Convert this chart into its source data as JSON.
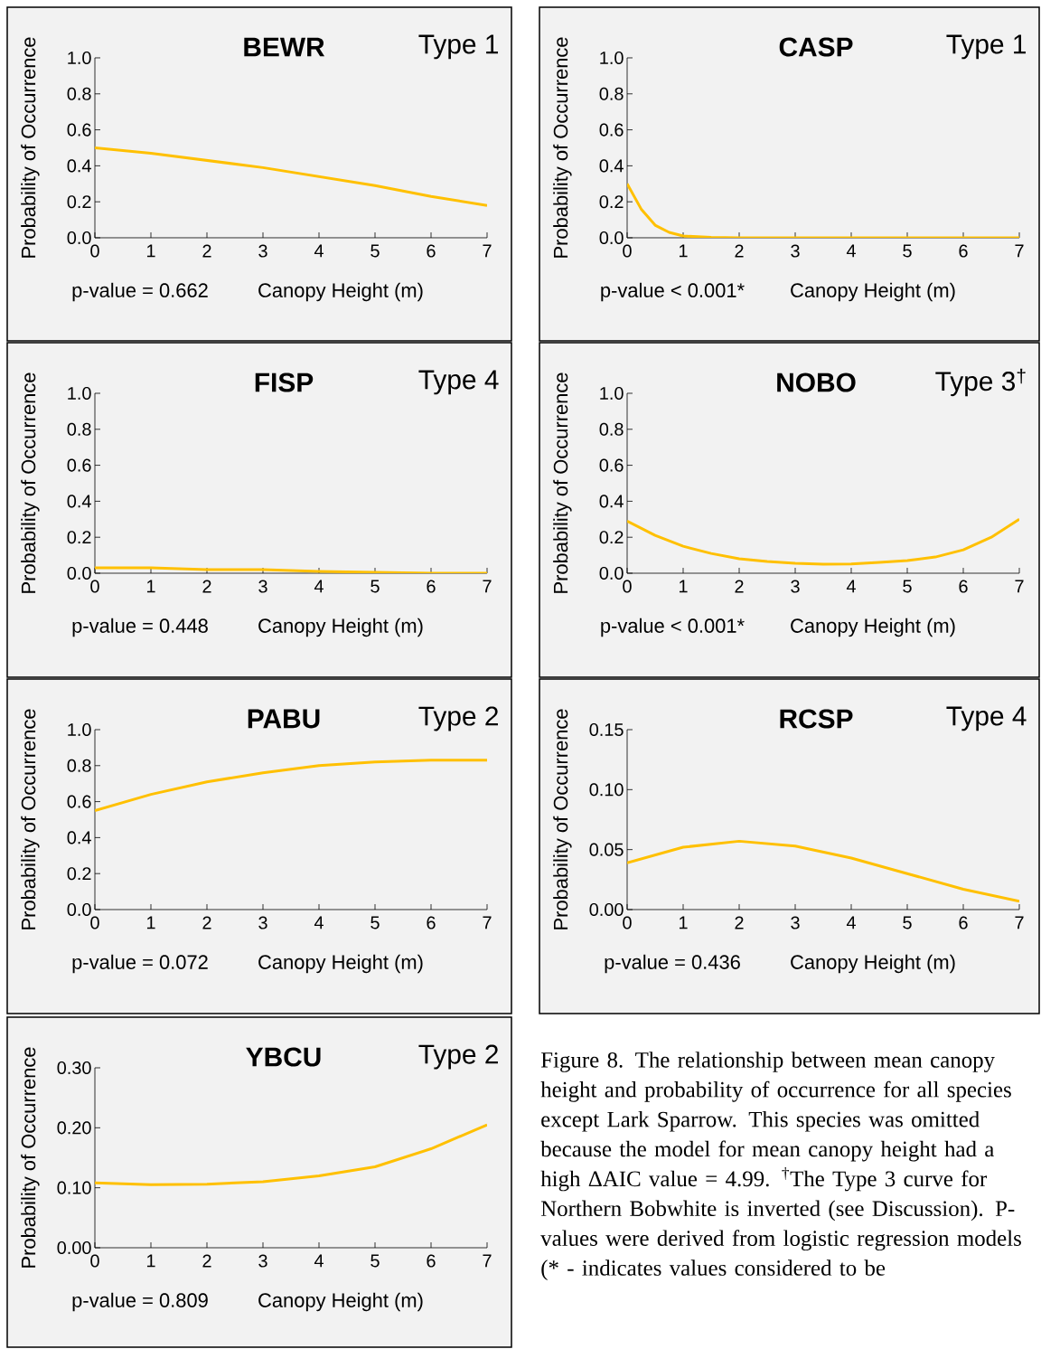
{
  "chart_data": [
    {
      "type": "line",
      "title": "BEWR",
      "subtitle": "Type 1",
      "xlabel": "Canopy Height (m)",
      "ylabel": "Probability of Occurrence",
      "annotations": [
        "p-value = 0.662"
      ],
      "x": [
        0,
        1,
        2,
        3,
        4,
        5,
        6,
        7
      ],
      "series": [
        {
          "color": "#ffc000",
          "values": [
            0.5,
            0.47,
            0.43,
            0.39,
            0.34,
            0.29,
            0.23,
            0.18
          ]
        }
      ],
      "xlim": [
        0,
        7
      ],
      "ylim": [
        0,
        1
      ],
      "xticks": [
        0,
        1,
        2,
        3,
        4,
        5,
        6,
        7
      ],
      "yticks": [
        {
          "value": 0,
          "label": "0.0"
        },
        {
          "value": 0.2,
          "label": "0.2"
        },
        {
          "value": 0.4,
          "label": "0.4"
        },
        {
          "value": 0.6,
          "label": "0.6"
        },
        {
          "value": 0.8,
          "label": "0.8"
        },
        {
          "value": 1,
          "label": "1.0"
        }
      ]
    },
    {
      "type": "line",
      "title": "CASP",
      "subtitle": "Type 1",
      "xlabel": "Canopy Height (m)",
      "ylabel": "Probability of Occurrence",
      "annotations": [
        "p-value < 0.001*"
      ],
      "x": [
        0,
        0.25,
        0.5,
        0.75,
        1,
        1.5,
        2,
        3,
        4,
        5,
        6,
        7
      ],
      "series": [
        {
          "color": "#ffc000",
          "values": [
            0.3,
            0.16,
            0.07,
            0.03,
            0.01,
            0.002,
            0,
            0,
            0,
            0,
            0,
            0
          ]
        }
      ],
      "xlim": [
        0,
        7
      ],
      "ylim": [
        0,
        1
      ],
      "xticks": [
        0,
        1,
        2,
        3,
        4,
        5,
        6,
        7
      ],
      "yticks": [
        {
          "value": 0,
          "label": "0.0"
        },
        {
          "value": 0.2,
          "label": "0.2"
        },
        {
          "value": 0.4,
          "label": "0.4"
        },
        {
          "value": 0.6,
          "label": "0.6"
        },
        {
          "value": 0.8,
          "label": "0.8"
        },
        {
          "value": 1,
          "label": "1.0"
        }
      ]
    },
    {
      "type": "line",
      "title": "FISP",
      "subtitle": "Type 4",
      "xlabel": "Canopy Height (m)",
      "ylabel": "Probability of Occurrence",
      "annotations": [
        "p-value = 0.448"
      ],
      "x": [
        0,
        1,
        2,
        3,
        4,
        5,
        6,
        7
      ],
      "series": [
        {
          "color": "#ffc000",
          "values": [
            0.03,
            0.03,
            0.02,
            0.02,
            0.01,
            0.005,
            0,
            0
          ]
        }
      ],
      "xlim": [
        0,
        7
      ],
      "ylim": [
        0,
        1
      ],
      "xticks": [
        0,
        1,
        2,
        3,
        4,
        5,
        6,
        7
      ],
      "yticks": [
        {
          "value": 0,
          "label": "0.0"
        },
        {
          "value": 0.2,
          "label": "0.2"
        },
        {
          "value": 0.4,
          "label": "0.4"
        },
        {
          "value": 0.6,
          "label": "0.6"
        },
        {
          "value": 0.8,
          "label": "0.8"
        },
        {
          "value": 1,
          "label": "1.0"
        }
      ]
    },
    {
      "type": "line",
      "title": "NOBO",
      "subtitle": "Type 3$^{†}$",
      "xlabel": "Canopy Height (m)",
      "ylabel": "Probability of Occurrence",
      "annotations": [
        "p-value < 0.001*"
      ],
      "x": [
        0,
        0.5,
        1,
        1.5,
        2,
        2.5,
        3,
        3.5,
        4,
        4.5,
        5,
        5.5,
        6,
        6.5,
        7
      ],
      "series": [
        {
          "color": "#ffc000",
          "values": [
            0.29,
            0.21,
            0.15,
            0.11,
            0.08,
            0.065,
            0.055,
            0.05,
            0.052,
            0.06,
            0.07,
            0.09,
            0.13,
            0.2,
            0.3
          ]
        }
      ],
      "xlim": [
        0,
        7
      ],
      "ylim": [
        0,
        1
      ],
      "xticks": [
        0,
        1,
        2,
        3,
        4,
        5,
        6,
        7
      ],
      "yticks": [
        {
          "value": 0,
          "label": "0.0"
        },
        {
          "value": 0.2,
          "label": "0.2"
        },
        {
          "value": 0.4,
          "label": "0.4"
        },
        {
          "value": 0.6,
          "label": "0.6"
        },
        {
          "value": 0.8,
          "label": "0.8"
        },
        {
          "value": 1,
          "label": "1.0"
        }
      ]
    },
    {
      "type": "line",
      "title": "PABU",
      "subtitle": "Type 2",
      "xlabel": "Canopy Height (m)",
      "ylabel": "Probability of Occurrence",
      "annotations": [
        "p-value = 0.072"
      ],
      "x": [
        0,
        1,
        2,
        3,
        4,
        5,
        6,
        7
      ],
      "series": [
        {
          "color": "#ffc000",
          "values": [
            0.55,
            0.64,
            0.71,
            0.76,
            0.8,
            0.82,
            0.83,
            0.83
          ]
        }
      ],
      "xlim": [
        0,
        7
      ],
      "ylim": [
        0,
        1
      ],
      "xticks": [
        0,
        1,
        2,
        3,
        4,
        5,
        6,
        7
      ],
      "yticks": [
        {
          "value": 0,
          "label": "0.0"
        },
        {
          "value": 0.2,
          "label": "0.2"
        },
        {
          "value": 0.4,
          "label": "0.4"
        },
        {
          "value": 0.6,
          "label": "0.6"
        },
        {
          "value": 0.8,
          "label": "0.8"
        },
        {
          "value": 1,
          "label": "1.0"
        }
      ]
    },
    {
      "type": "line",
      "title": "RCSP",
      "subtitle": "Type 4",
      "xlabel": "Canopy Height (m)",
      "ylabel": "Probability of Occurrence",
      "annotations": [
        "p-value =  0.436"
      ],
      "x": [
        0,
        1,
        2,
        3,
        4,
        5,
        6,
        7
      ],
      "series": [
        {
          "color": "#ffc000",
          "values": [
            0.039,
            0.052,
            0.057,
            0.053,
            0.043,
            0.03,
            0.017,
            0.007
          ]
        }
      ],
      "xlim": [
        0,
        7
      ],
      "ylim": [
        0,
        0.15
      ],
      "xticks": [
        0,
        1,
        2,
        3,
        4,
        5,
        6,
        7
      ],
      "yticks": [
        {
          "value": 0,
          "label": "0.00"
        },
        {
          "value": 0.05,
          "label": "0.05"
        },
        {
          "value": 0.1,
          "label": "0.10"
        },
        {
          "value": 0.15,
          "label": "0.15"
        }
      ]
    },
    {
      "type": "line",
      "title": "YBCU",
      "subtitle": "Type 2",
      "xlabel": "Canopy Height (m)",
      "ylabel": "Probability of Occurrence",
      "annotations": [
        "p-value = 0.809"
      ],
      "x": [
        0,
        1,
        2,
        3,
        4,
        5,
        6,
        7
      ],
      "series": [
        {
          "color": "#ffc000",
          "values": [
            0.108,
            0.105,
            0.106,
            0.11,
            0.12,
            0.135,
            0.165,
            0.205
          ]
        }
      ],
      "xlim": [
        0,
        7
      ],
      "ylim": [
        0,
        0.3
      ],
      "xticks": [
        0,
        1,
        2,
        3,
        4,
        5,
        6,
        7
      ],
      "yticks": [
        {
          "value": 0,
          "label": "0.00"
        },
        {
          "value": 0.1,
          "label": "0.10"
        },
        {
          "value": 0.2,
          "label": "0.20"
        },
        {
          "value": 0.3,
          "label": "0.30"
        }
      ]
    },
    {
      "type": "other",
      "annotations": [
        "Figure 8. The relationship between mean canopy height and probability of occurrence for all species except Lark Sparrow. This species was omitted because the model for mean canopy height had a high ΔAIC value = 4.99. $^{†}$The Type 3 curve for Northern Bobwhite is inverted (see Discussion). P-values were derived from logistic regression models (* - indicates values considered to be"
      ]
    }
  ]
}
